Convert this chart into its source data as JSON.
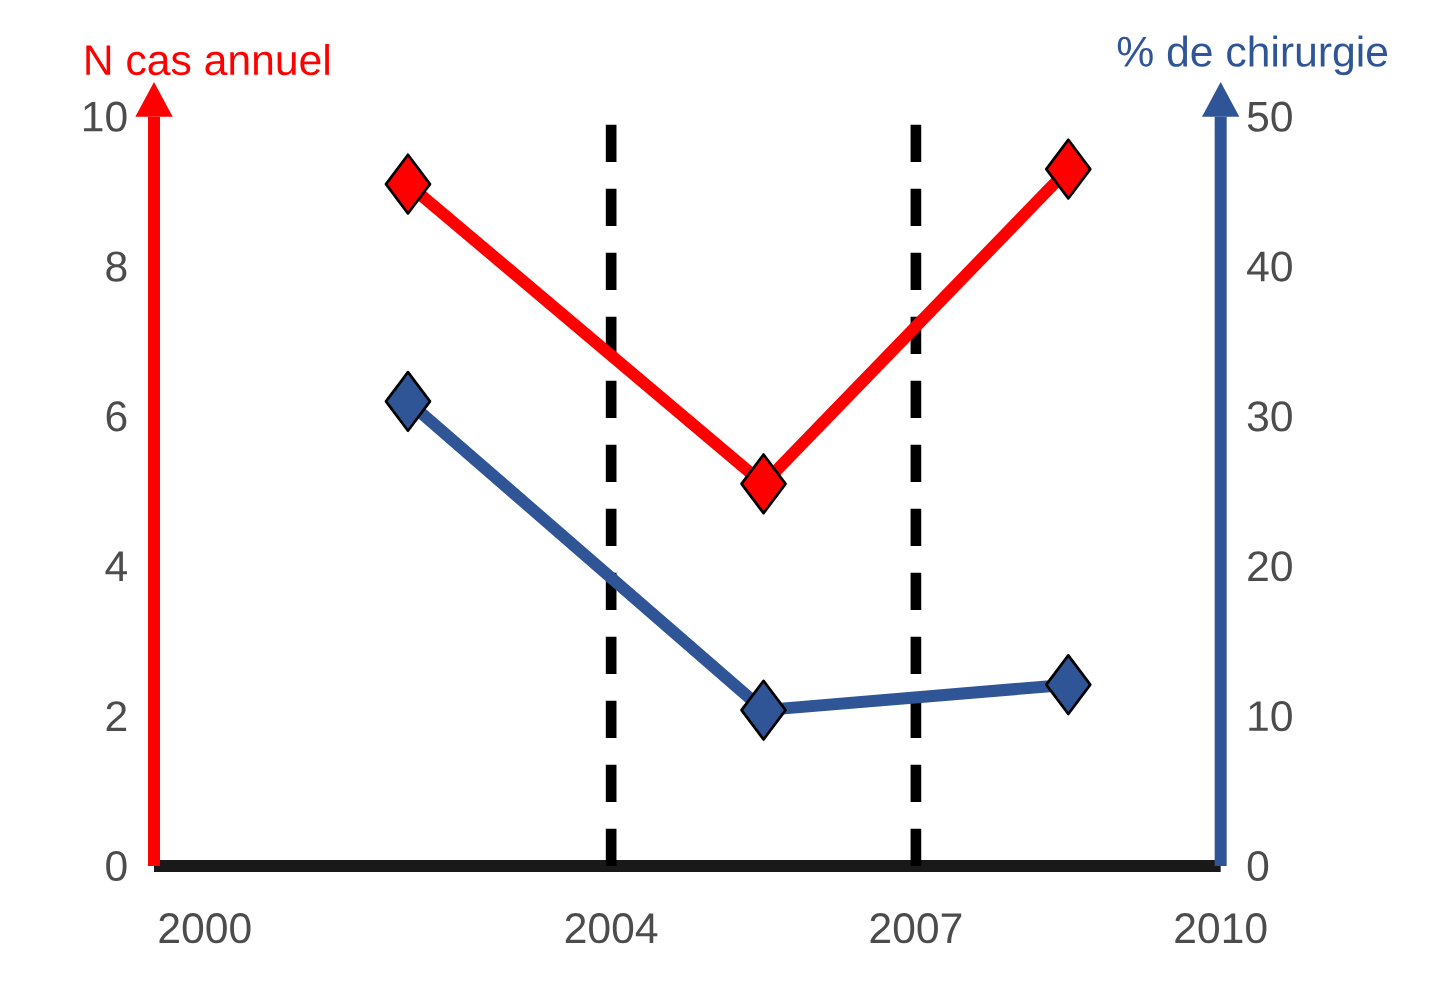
{
  "chart_data": {
    "type": "line",
    "ylabel": "N cas annuel",
    "y2label": "% de chirurgie",
    "xlim": [
      1999.5,
      2010
    ],
    "xticks": [
      2000,
      2004,
      2007,
      2010
    ],
    "ylim": [
      0,
      10
    ],
    "yticks": [
      0,
      2,
      4,
      6,
      8,
      10
    ],
    "y2lim": [
      0,
      50
    ],
    "y2ticks": [
      0,
      10,
      20,
      30,
      40,
      50
    ],
    "series": [
      {
        "color": "#ff0000",
        "x": [
          2002,
          2005.5,
          2008.5
        ],
        "values": [
          9.1,
          5.1,
          9.3
        ]
      },
      {
        "color": "#2f5597",
        "axis": "y2",
        "x": [
          2002,
          2005.5,
          2008.5
        ],
        "values": [
          31,
          10.4,
          12.1
        ]
      }
    ],
    "ref_lines": [
      {
        "axis": "x",
        "value": 2004,
        "color": "#000000",
        "line_style": "dashed"
      },
      {
        "axis": "x",
        "value": 2007,
        "color": "#000000",
        "line_style": "dashed"
      }
    ],
    "marker": "diamond",
    "line_style": "solid",
    "grid": false
  }
}
